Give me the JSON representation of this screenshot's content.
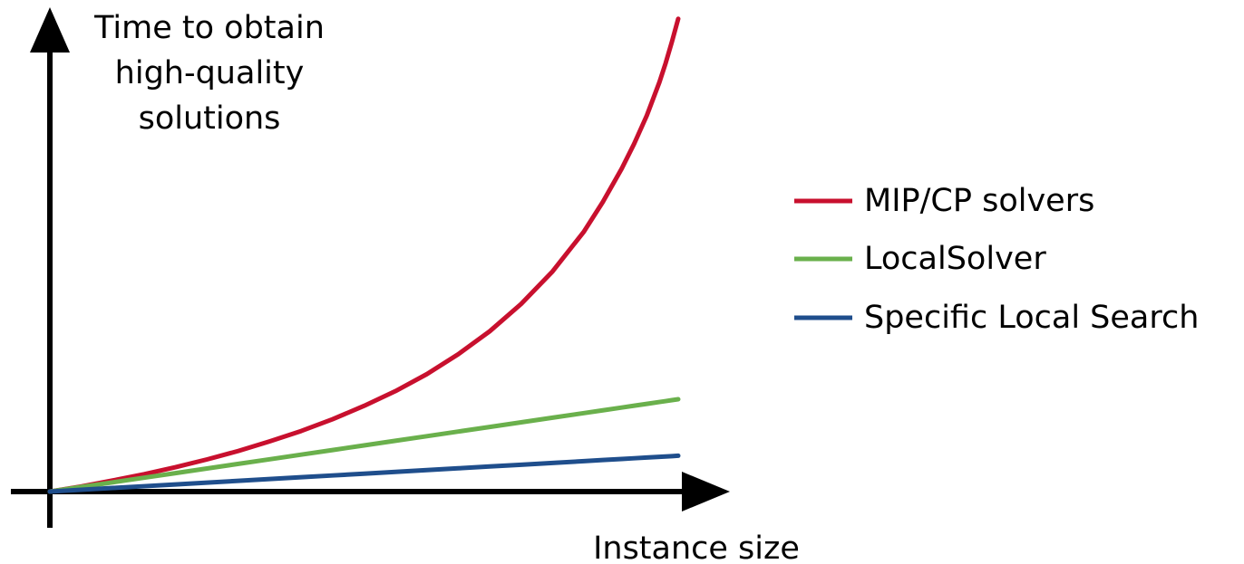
{
  "chart_data": {
    "type": "line",
    "title": "",
    "ylabel": [
      "Time to obtain",
      "high-quality",
      "solutions"
    ],
    "xlabel": "Instance size",
    "axis_ticks": false,
    "grid": false,
    "legend_position": "right",
    "x": [
      0,
      0.05,
      0.1,
      0.15,
      0.2,
      0.25,
      0.3,
      0.35,
      0.4,
      0.45,
      0.5,
      0.55,
      0.6,
      0.65,
      0.7,
      0.75,
      0.8,
      0.85,
      0.88,
      0.91,
      0.93,
      0.95,
      0.97,
      0.98,
      0.99,
      1.0
    ],
    "series": [
      {
        "name": "MIP/CP solvers",
        "color": "#c8102e",
        "values": [
          0,
          0.014,
          0.03,
          0.047,
          0.066,
          0.087,
          0.11,
          0.136,
          0.164,
          0.196,
          0.232,
          0.272,
          0.318,
          0.372,
          0.434,
          0.508,
          0.596,
          0.704,
          0.784,
          0.874,
          0.942,
          1.018,
          1.108,
          1.16,
          1.218,
          1.28
        ]
      },
      {
        "name": "LocalSolver",
        "color": "#6ab04c",
        "values": [
          0,
          0.0125,
          0.025,
          0.0375,
          0.05,
          0.0625,
          0.075,
          0.0875,
          0.1,
          0.1125,
          0.125,
          0.1375,
          0.15,
          0.1625,
          0.175,
          0.1875,
          0.2,
          0.2125,
          0.22,
          0.2275,
          0.2325,
          0.2375,
          0.2425,
          0.245,
          0.2475,
          0.25
        ]
      },
      {
        "name": "Specific Local Search",
        "color": "#1f4e8c",
        "values": [
          0,
          0.00485,
          0.0097,
          0.01455,
          0.0194,
          0.02425,
          0.0291,
          0.03395,
          0.0388,
          0.04365,
          0.0485,
          0.05335,
          0.0582,
          0.06305,
          0.0679,
          0.07275,
          0.0776,
          0.08245,
          0.08536,
          0.08827,
          0.09021,
          0.09215,
          0.09409,
          0.09506,
          0.09603,
          0.097
        ]
      }
    ]
  }
}
